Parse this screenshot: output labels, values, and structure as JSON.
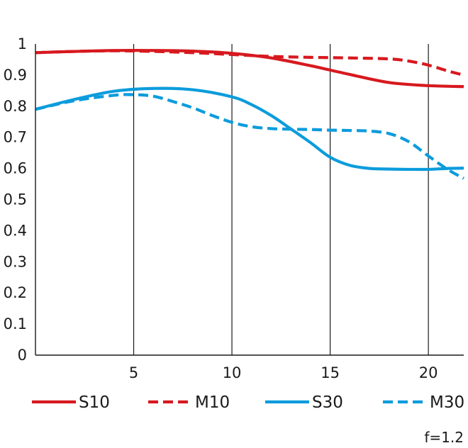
{
  "chart_data": {
    "type": "line",
    "xlim": [
      0,
      21.8
    ],
    "ylim": [
      0,
      1
    ],
    "x_ticks": [
      5,
      10,
      15,
      20
    ],
    "y_ticks": [
      0,
      0.1,
      0.2,
      0.3,
      0.4,
      0.5,
      0.6,
      0.7,
      0.8,
      0.9,
      1
    ],
    "y_tick_labels": [
      "0",
      "0.1",
      "0.2",
      "0.3",
      "0.4",
      "0.5",
      "0.6",
      "0.7",
      "0.8",
      "0.9",
      "1"
    ],
    "grid": "vertical",
    "legend_position": "bottom",
    "note": "f=1.2",
    "series": [
      {
        "name": "S10",
        "color": "#d7191f",
        "dash": "solid",
        "x": [
          0,
          2,
          4,
          6,
          8,
          10,
          12,
          14,
          16,
          18,
          20,
          21.8
        ],
        "y": [
          0.972,
          0.976,
          0.979,
          0.979,
          0.977,
          0.97,
          0.955,
          0.93,
          0.902,
          0.876,
          0.866,
          0.863
        ]
      },
      {
        "name": "M10",
        "color": "#d7191f",
        "dash": "dashed",
        "x": [
          0,
          2,
          4,
          6,
          8,
          10,
          12,
          14,
          16,
          18,
          19,
          20,
          21,
          21.8
        ],
        "y": [
          0.972,
          0.976,
          0.978,
          0.976,
          0.972,
          0.966,
          0.96,
          0.957,
          0.955,
          0.952,
          0.945,
          0.932,
          0.913,
          0.9
        ]
      },
      {
        "name": "S30",
        "color": "#0c9cdc",
        "dash": "solid",
        "x": [
          0,
          2,
          4,
          6,
          8,
          10,
          11,
          12,
          13,
          14,
          15,
          16,
          17,
          18,
          19,
          20,
          21,
          21.8
        ],
        "y": [
          0.79,
          0.822,
          0.848,
          0.857,
          0.853,
          0.83,
          0.805,
          0.77,
          0.727,
          0.683,
          0.636,
          0.61,
          0.6,
          0.598,
          0.597,
          0.597,
          0.6,
          0.601
        ]
      },
      {
        "name": "M30",
        "color": "#0c9cdc",
        "dash": "dashed",
        "x": [
          0,
          2,
          4,
          5,
          6,
          7,
          8,
          9,
          10,
          11,
          12,
          13,
          14,
          15,
          16,
          17,
          18,
          19,
          20,
          21,
          21.8
        ],
        "y": [
          0.79,
          0.818,
          0.835,
          0.837,
          0.832,
          0.815,
          0.795,
          0.77,
          0.748,
          0.734,
          0.728,
          0.726,
          0.725,
          0.723,
          0.722,
          0.72,
          0.712,
          0.686,
          0.64,
          0.596,
          0.568
        ]
      }
    ]
  }
}
